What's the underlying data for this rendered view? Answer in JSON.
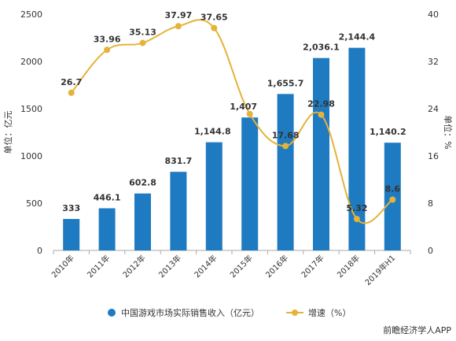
{
  "chart_data": {
    "type": "bar",
    "categories": [
      "2010年",
      "2011年",
      "2012年",
      "2013年",
      "2014年",
      "2015年",
      "2016年",
      "2017年",
      "2018年",
      "2019年H1"
    ],
    "bar_labels": [
      "333",
      "446.1",
      "602.8",
      "831.7",
      "1,144.8",
      "1,407",
      "1,655.7",
      "2,036.1",
      "2,144.4",
      "1,140.2"
    ],
    "line_labels": [
      "26.7",
      "33.96",
      "35.13",
      "37.97",
      "37.65",
      "",
      "17.68",
      "22.98",
      "5.32",
      "8.6"
    ],
    "series": [
      {
        "name": "中国游戏市场实际销售收入（亿元）",
        "type": "bar",
        "axis": "left",
        "values": [
          333,
          446.1,
          602.8,
          831.7,
          1144.8,
          1407,
          1655.7,
          2036.1,
          2144.4,
          1140.2
        ]
      },
      {
        "name": "增速（%）",
        "type": "line",
        "axis": "right",
        "values": [
          26.7,
          33.96,
          35.13,
          37.97,
          37.65,
          23.1,
          17.68,
          22.98,
          5.32,
          8.6
        ]
      }
    ],
    "ylabel_left": "单位：亿元",
    "ylabel_right": "单位：%",
    "yticks_left": [
      "0",
      "500",
      "1000",
      "1500",
      "2000",
      "2500"
    ],
    "yticks_right": [
      "0",
      "8",
      "16",
      "24",
      "32",
      "40"
    ],
    "ylim_left": [
      0,
      2500
    ],
    "ylim_right": [
      0,
      40
    ],
    "legend_position": "bottom",
    "grid": false,
    "colors": {
      "bar": "#1f7bc1",
      "line": "#e5b23a"
    }
  },
  "footer_text": "前瞻经济学人APP"
}
